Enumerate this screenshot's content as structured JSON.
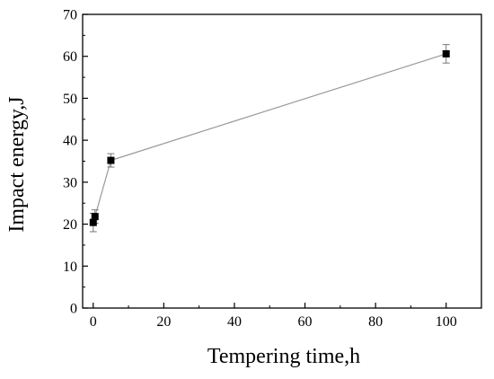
{
  "chart_data": {
    "type": "line",
    "xlabel": "Tempering time,h",
    "ylabel": "Impact energy,J",
    "xlim": [
      -3,
      110
    ],
    "ylim": [
      0,
      70
    ],
    "x_ticks": [
      0,
      20,
      40,
      60,
      80,
      100
    ],
    "y_ticks": [
      0,
      10,
      20,
      30,
      40,
      50,
      60,
      70
    ],
    "grid": false,
    "legend": "none",
    "series": [
      {
        "x": [
          0,
          0.5,
          5,
          100
        ],
        "y": [
          20.4,
          21.8,
          35.2,
          60.6
        ],
        "error": [
          2.2,
          1.6,
          1.6,
          2.2
        ],
        "line_color": "#9a9a9a",
        "marker": "square",
        "marker_color": "#000000"
      }
    ]
  }
}
